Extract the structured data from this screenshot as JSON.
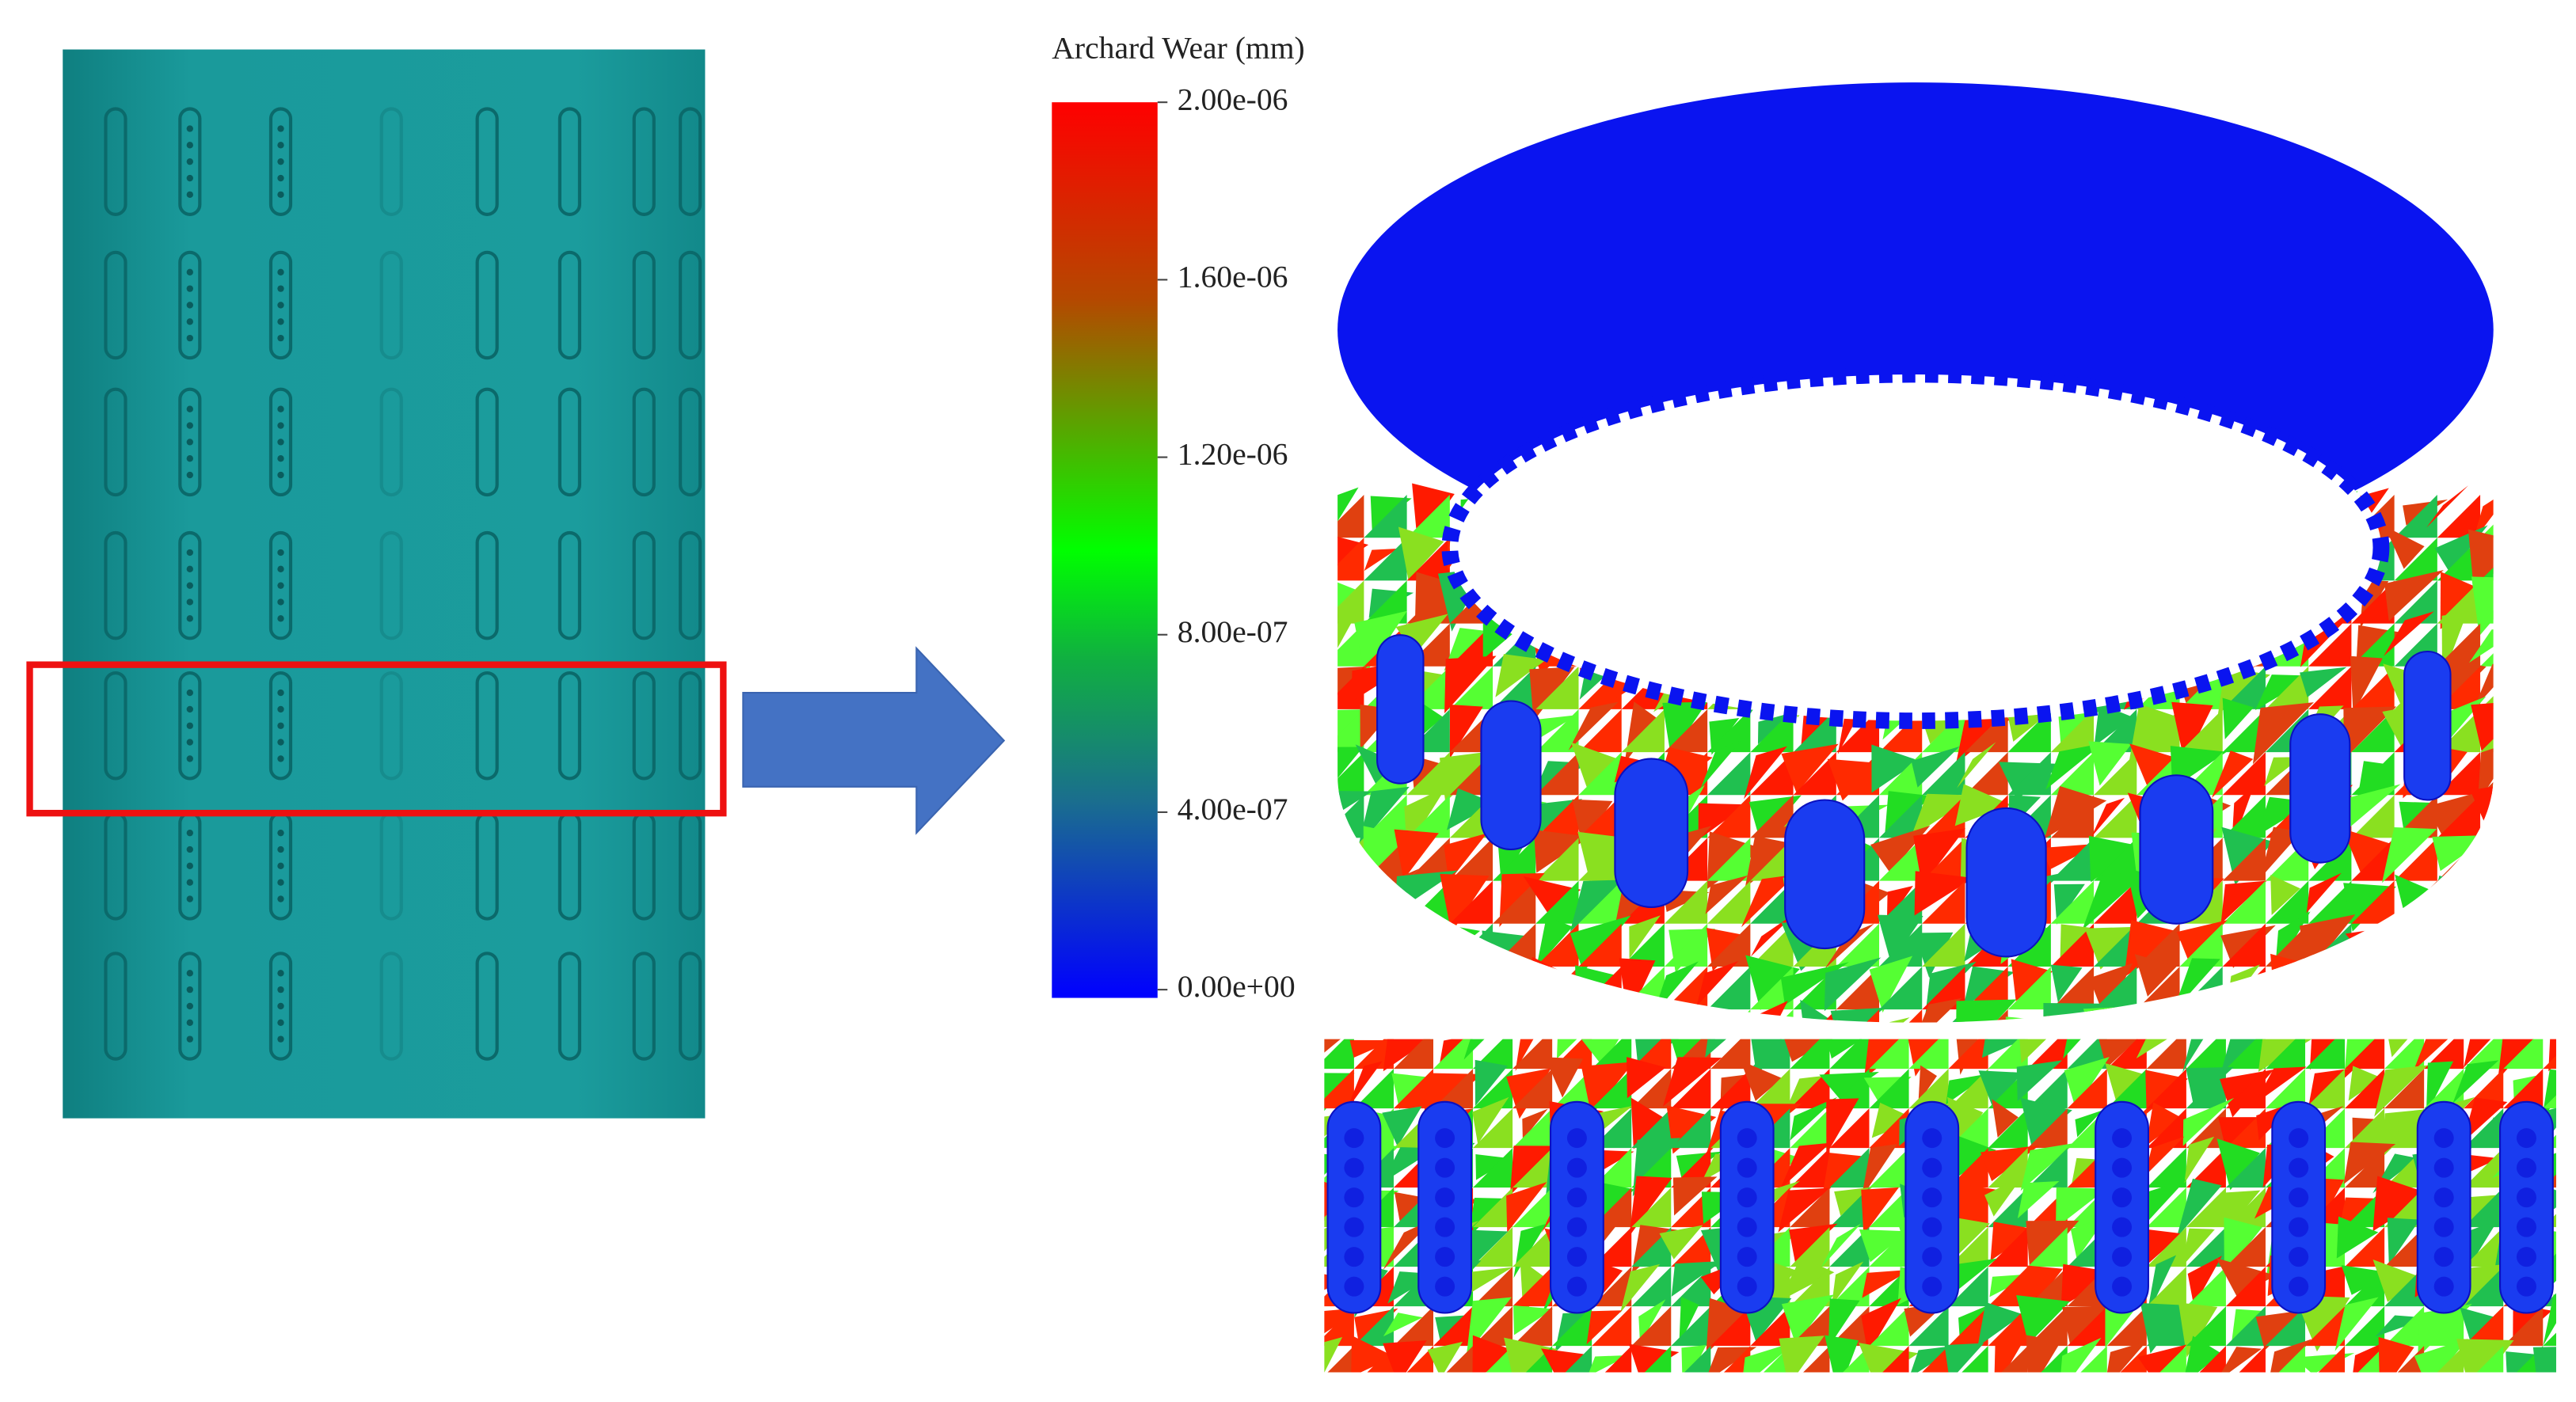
{
  "colorbar": {
    "title": "Archard Wear (mm)",
    "lim": [
      0,
      2e-06
    ],
    "ticks": [
      {
        "value": 2e-06,
        "label": "2.00e-06"
      },
      {
        "value": 1.6e-06,
        "label": "1.60e-06"
      },
      {
        "value": 1.2e-06,
        "label": "1.20e-06"
      },
      {
        "value": 8e-07,
        "label": "8.00e-07"
      },
      {
        "value": 4e-07,
        "label": "4.00e-07"
      },
      {
        "value": 0,
        "label": "0.00e+00"
      }
    ]
  }
}
